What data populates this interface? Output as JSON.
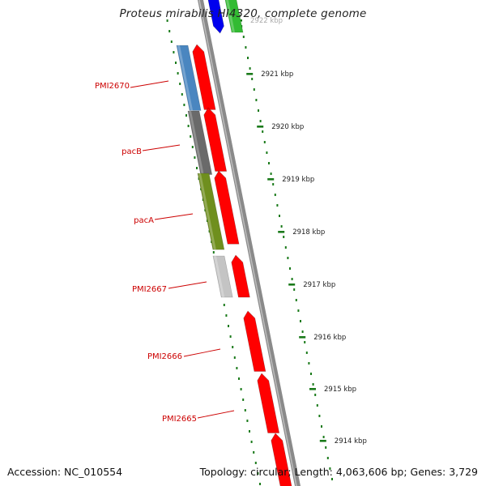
{
  "title": "Proteus mirabilis HI4320, complete genome",
  "footer": {
    "accession": "Accession: NC_010554",
    "summary": "Topology: circular; Length: 4,063,606 bp; Genes: 3,729"
  },
  "colors": {
    "gene_label": "#cc0000",
    "cds_forward": "#ff0000",
    "backbone": "#8a8a8a",
    "tick": "#1a7a1a",
    "cog_blue": "#4a86c0",
    "cog_dark": "#6a6a6a",
    "cog_olive": "#6f8f1e",
    "cog_gray": "#c4c4c4"
  },
  "ruler": {
    "labels": [
      "2922 kbp",
      "2921 kbp",
      "2920 kbp",
      "2919 kbp",
      "2918 kbp",
      "2917 kbp",
      "2916 kbp",
      "2915 kbp",
      "2914 kbp"
    ]
  },
  "gene_labels": [
    "PMI2670",
    "pacB",
    "pacA",
    "PMI2667",
    "PMI2666",
    "PMI2665"
  ]
}
